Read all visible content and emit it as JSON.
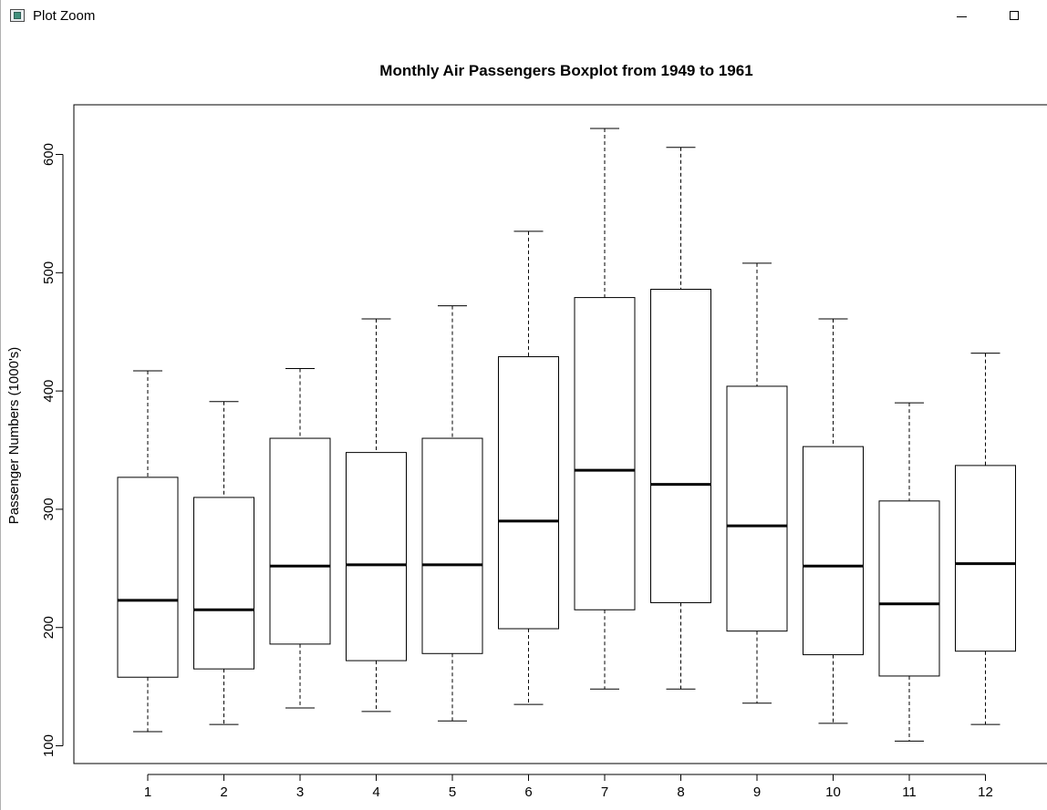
{
  "window": {
    "title": "Plot Zoom",
    "icon": "rstudio-plot-icon",
    "controls": {
      "minimize": "minimize-icon",
      "maximize": "maximize-icon"
    }
  },
  "chart_data": {
    "type": "boxplot",
    "title": "Monthly Air Passengers Boxplot from 1949 to 1961",
    "xlabel": "",
    "ylabel": "Passenger Numbers (1000's)",
    "categories": [
      "1",
      "2",
      "3",
      "4",
      "5",
      "6",
      "7",
      "8",
      "9",
      "10",
      "11",
      "12"
    ],
    "ylim": [
      85,
      642
    ],
    "yticks": [
      "100",
      "200",
      "300",
      "400",
      "500",
      "600"
    ],
    "grid": false,
    "boxes": [
      {
        "category": "1",
        "min": 112,
        "q1": 158,
        "median": 223,
        "q3": 327,
        "max": 417
      },
      {
        "category": "2",
        "min": 118,
        "q1": 165,
        "median": 215,
        "q3": 310,
        "max": 391
      },
      {
        "category": "3",
        "min": 132,
        "q1": 186,
        "median": 252,
        "q3": 360,
        "max": 419
      },
      {
        "category": "4",
        "min": 129,
        "q1": 172,
        "median": 253,
        "q3": 348,
        "max": 461
      },
      {
        "category": "5",
        "min": 121,
        "q1": 178,
        "median": 253,
        "q3": 360,
        "max": 472
      },
      {
        "category": "6",
        "min": 135,
        "q1": 199,
        "median": 290,
        "q3": 429,
        "max": 535
      },
      {
        "category": "7",
        "min": 148,
        "q1": 215,
        "median": 333,
        "q3": 479,
        "max": 622
      },
      {
        "category": "8",
        "min": 148,
        "q1": 221,
        "median": 321,
        "q3": 486,
        "max": 606
      },
      {
        "category": "9",
        "min": 136,
        "q1": 197,
        "median": 286,
        "q3": 404,
        "max": 508
      },
      {
        "category": "10",
        "min": 119,
        "q1": 177,
        "median": 252,
        "q3": 353,
        "max": 461
      },
      {
        "category": "11",
        "min": 104,
        "q1": 159,
        "median": 220,
        "q3": 307,
        "max": 390
      },
      {
        "category": "12",
        "min": 118,
        "q1": 180,
        "median": 254,
        "q3": 337,
        "max": 432
      }
    ]
  }
}
